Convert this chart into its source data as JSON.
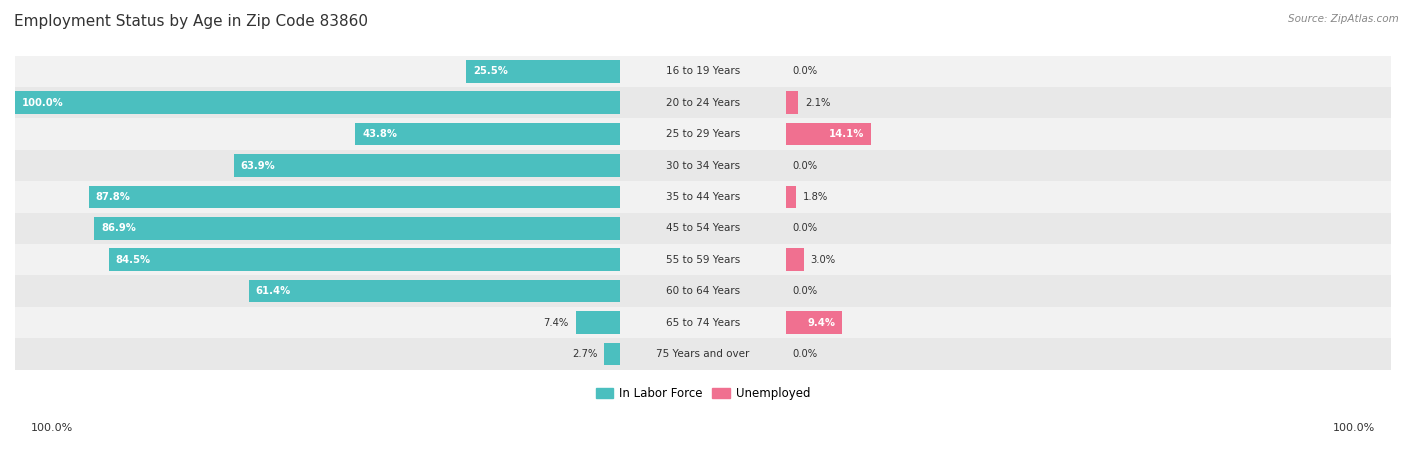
{
  "title": "Employment Status by Age in Zip Code 83860",
  "source": "Source: ZipAtlas.com",
  "categories": [
    "16 to 19 Years",
    "20 to 24 Years",
    "25 to 29 Years",
    "30 to 34 Years",
    "35 to 44 Years",
    "45 to 54 Years",
    "55 to 59 Years",
    "60 to 64 Years",
    "65 to 74 Years",
    "75 Years and over"
  ],
  "labor_force": [
    25.5,
    100.0,
    43.8,
    63.9,
    87.8,
    86.9,
    84.5,
    61.4,
    7.4,
    2.7
  ],
  "unemployed": [
    0.0,
    2.1,
    14.1,
    0.0,
    1.8,
    0.0,
    3.0,
    0.0,
    9.4,
    0.0
  ],
  "labor_force_color": "#4bbfbf",
  "unemployed_color": "#f07090",
  "title_color": "#333333",
  "source_color": "#888888",
  "text_dark": "#333333",
  "text_white": "#ffffff",
  "legend_labels": [
    "In Labor Force",
    "Unemployed"
  ],
  "x_left_label": "100.0%",
  "x_right_label": "100.0%",
  "row_colors": [
    "#f2f2f2",
    "#e8e8e8"
  ]
}
